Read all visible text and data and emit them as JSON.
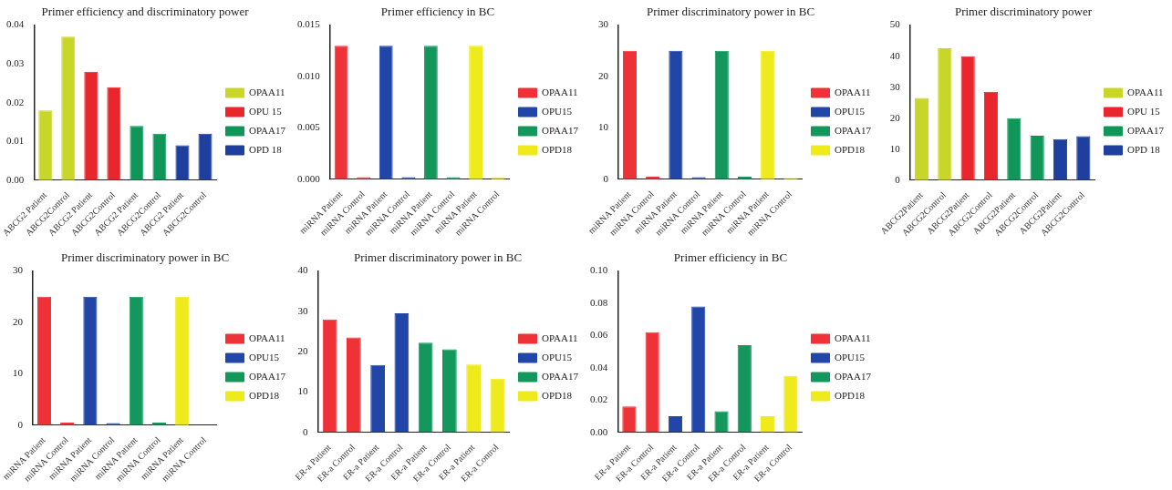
{
  "chart_data": [
    {
      "type": "bar",
      "title": "Primer efficiency and discriminatory power",
      "categories": [
        "ABCG2 Patient",
        "ABCG2Control",
        "ABCG2 Patient",
        "ABCG2Control",
        "ABCG2 Patient",
        "ABCG2Control",
        "ABCG2 Patient",
        "ABCG2Control"
      ],
      "series": [
        {
          "name": "OPAA11",
          "color": "#c8d62a",
          "values": [
            0.018,
            0.037,
            null,
            null,
            null,
            null,
            null,
            null
          ]
        },
        {
          "name": "OPU 15",
          "color": "#e8262c",
          "values": [
            null,
            null,
            0.028,
            0.024,
            null,
            null,
            null,
            null
          ]
        },
        {
          "name": "OPAA17",
          "color": "#11965a",
          "values": [
            null,
            null,
            null,
            null,
            0.014,
            0.012,
            null,
            null
          ]
        },
        {
          "name": "OPD 18",
          "color": "#1f3f9e",
          "values": [
            null,
            null,
            null,
            null,
            null,
            null,
            0.009,
            0.012
          ]
        }
      ],
      "ylim": [
        0,
        0.04
      ],
      "yticks": [
        {
          "value": 0,
          "label": "0.00"
        },
        {
          "value": 0.01,
          "label": "0.01"
        },
        {
          "value": 0.02,
          "label": "0.02"
        },
        {
          "value": 0.03,
          "label": "0.03"
        },
        {
          "value": 0.04,
          "label": "0.04"
        }
      ],
      "legend": "right"
    },
    {
      "type": "bar",
      "title": "Primer efficiency in BC",
      "categories": [
        "miRNA Patient",
        "miRNA Control",
        "miRNA Patient",
        "miRNA Control",
        "miRNA Patient",
        "miRNA Control",
        "miRNA Patient",
        "miRNA Control"
      ],
      "series": [
        {
          "name": "OPAA11",
          "color": "#ee3237",
          "values": [
            0.013,
            0.0002,
            null,
            null,
            null,
            null,
            null,
            null
          ]
        },
        {
          "name": "OPU15",
          "color": "#2146a8",
          "values": [
            null,
            null,
            0.013,
            0.0002,
            null,
            null,
            null,
            null
          ]
        },
        {
          "name": "OPAA17",
          "color": "#13975c",
          "values": [
            null,
            null,
            null,
            null,
            0.013,
            0.0002,
            null,
            null
          ]
        },
        {
          "name": "OPD18",
          "color": "#eeea1c",
          "values": [
            null,
            null,
            null,
            null,
            null,
            null,
            0.013,
            0.0002
          ]
        }
      ],
      "ylim": [
        0,
        0.015
      ],
      "yticks": [
        {
          "value": 0,
          "label": "0.000"
        },
        {
          "value": 0.005,
          "label": "0.005"
        },
        {
          "value": 0.01,
          "label": "0.010"
        },
        {
          "value": 0.015,
          "label": "0.015"
        }
      ],
      "legend": "right"
    },
    {
      "type": "bar",
      "title": "Primer discriminatory power in BC",
      "categories": [
        "miRNA Patient",
        "miRNA Control",
        "miRNA Patient",
        "miRNA Control",
        "miRNA Patient",
        "miRNA Control",
        "miRNA Patient",
        "miRNA Control"
      ],
      "series": [
        {
          "name": "OPAA11",
          "color": "#ee3237",
          "values": [
            25,
            0.5,
            null,
            null,
            null,
            null,
            null,
            null
          ]
        },
        {
          "name": "OPU15",
          "color": "#2146a8",
          "values": [
            null,
            null,
            25,
            0.4,
            null,
            null,
            null,
            null
          ]
        },
        {
          "name": "OPAA17",
          "color": "#13975c",
          "values": [
            null,
            null,
            null,
            null,
            25,
            0.5,
            null,
            null
          ]
        },
        {
          "name": "OPD18",
          "color": "#eeea1c",
          "values": [
            null,
            null,
            null,
            null,
            null,
            null,
            25,
            0.2
          ]
        }
      ],
      "ylim": [
        0,
        30
      ],
      "yticks": [
        0,
        10,
        20,
        30
      ],
      "legend": "right"
    },
    {
      "type": "bar",
      "title": "Primer discriminatory power",
      "categories": [
        "ABCG2Patient",
        "ABCG2Control",
        "ABCG2Patient",
        "ABCG2Control",
        "ABCG2Patient",
        "ABCG2Control",
        "ABCG2Patient",
        "ABCG2Control"
      ],
      "series": [
        {
          "name": "OPAA11",
          "color": "#c8d62a",
          "values": [
            26.5,
            42.5,
            null,
            null,
            null,
            null,
            null,
            null
          ]
        },
        {
          "name": "OPU 15",
          "color": "#e8262c",
          "values": [
            null,
            null,
            40,
            28.5,
            null,
            null,
            null,
            null
          ]
        },
        {
          "name": "OPAA17",
          "color": "#11965a",
          "values": [
            null,
            null,
            null,
            null,
            20,
            14.3,
            null,
            null
          ]
        },
        {
          "name": "OPD 18",
          "color": "#1f3f9e",
          "values": [
            null,
            null,
            null,
            null,
            null,
            null,
            13.2,
            14.2
          ]
        }
      ],
      "ylim": [
        0,
        50
      ],
      "yticks": [
        0,
        10,
        20,
        30,
        40,
        50
      ],
      "legend": "right"
    },
    {
      "type": "bar",
      "title": "Primer discriminatory power in BC",
      "categories": [
        "miRNA Patient",
        "miRNA Control",
        "miRNA Patient",
        "miRNA Control",
        "miRNA Patient",
        "miRNA Control",
        "miRNA Patient",
        "miRNA Control"
      ],
      "series": [
        {
          "name": "OPAA11",
          "color": "#ee3237",
          "values": [
            25,
            0.5,
            null,
            null,
            null,
            null,
            null,
            null
          ]
        },
        {
          "name": "OPU15",
          "color": "#2146a8",
          "values": [
            null,
            null,
            25,
            0.4,
            null,
            null,
            null,
            null
          ]
        },
        {
          "name": "OPAA17",
          "color": "#13975c",
          "values": [
            null,
            null,
            null,
            null,
            25,
            0.5,
            null,
            null
          ]
        },
        {
          "name": "OPD18",
          "color": "#eeea1c",
          "values": [
            null,
            null,
            null,
            null,
            null,
            null,
            25,
            null
          ]
        }
      ],
      "ylim": [
        0,
        30
      ],
      "yticks": [
        0,
        10,
        20,
        30
      ],
      "legend": "right"
    },
    {
      "type": "bar",
      "title": "Primer discriminatory power in BC",
      "categories": [
        "ER-a Patient",
        "ER-a Control",
        "ER-a Patient",
        "ER-a Control",
        "ER-a Patient",
        "ER-a Control",
        "ER-a Patient",
        "ER-a Control"
      ],
      "series": [
        {
          "name": "OPAA11",
          "color": "#ee3237",
          "values": [
            28,
            23.5,
            null,
            null,
            null,
            null,
            null,
            null
          ]
        },
        {
          "name": "OPU15",
          "color": "#2146a8",
          "values": [
            null,
            null,
            16.7,
            29.5,
            null,
            null,
            null,
            null
          ]
        },
        {
          "name": "OPAA17",
          "color": "#13975c",
          "values": [
            null,
            null,
            null,
            null,
            22.2,
            20.6,
            null,
            null
          ]
        },
        {
          "name": "OPD18",
          "color": "#eeea1c",
          "values": [
            null,
            null,
            null,
            null,
            null,
            null,
            16.8,
            13.3
          ]
        }
      ],
      "ylim": [
        0,
        40
      ],
      "yticks": [
        0,
        10,
        20,
        30,
        40
      ],
      "legend": "right"
    },
    {
      "type": "bar",
      "title": "Primer efficiency in BC",
      "categories": [
        "ER-a Patient",
        "ER-a Control",
        "ER-a Patient",
        "ER-a Control",
        "ER-a Patient",
        "ER-a Control",
        "ER-a Patient",
        "ER-a Control"
      ],
      "series": [
        {
          "name": "OPAA11",
          "color": "#ee3237",
          "values": [
            0.016,
            0.062,
            null,
            null,
            null,
            null,
            null,
            null
          ]
        },
        {
          "name": "OPU15",
          "color": "#2146a8",
          "values": [
            null,
            null,
            0.01,
            0.078,
            null,
            null,
            null,
            null
          ]
        },
        {
          "name": "OPAA17",
          "color": "#13975c",
          "values": [
            null,
            null,
            null,
            null,
            0.013,
            0.054,
            null,
            null
          ]
        },
        {
          "name": "OPD18",
          "color": "#eeea1c",
          "values": [
            null,
            null,
            null,
            null,
            null,
            null,
            0.01,
            0.035
          ]
        }
      ],
      "ylim": [
        0,
        0.1
      ],
      "yticks": [
        {
          "value": 0,
          "label": "0.00"
        },
        {
          "value": 0.02,
          "label": "0.02"
        },
        {
          "value": 0.04,
          "label": "0.04"
        },
        {
          "value": 0.06,
          "label": "0.06"
        },
        {
          "value": 0.08,
          "label": "0.08"
        },
        {
          "value": 0.1,
          "label": "0.10"
        }
      ],
      "legend": "right"
    }
  ]
}
